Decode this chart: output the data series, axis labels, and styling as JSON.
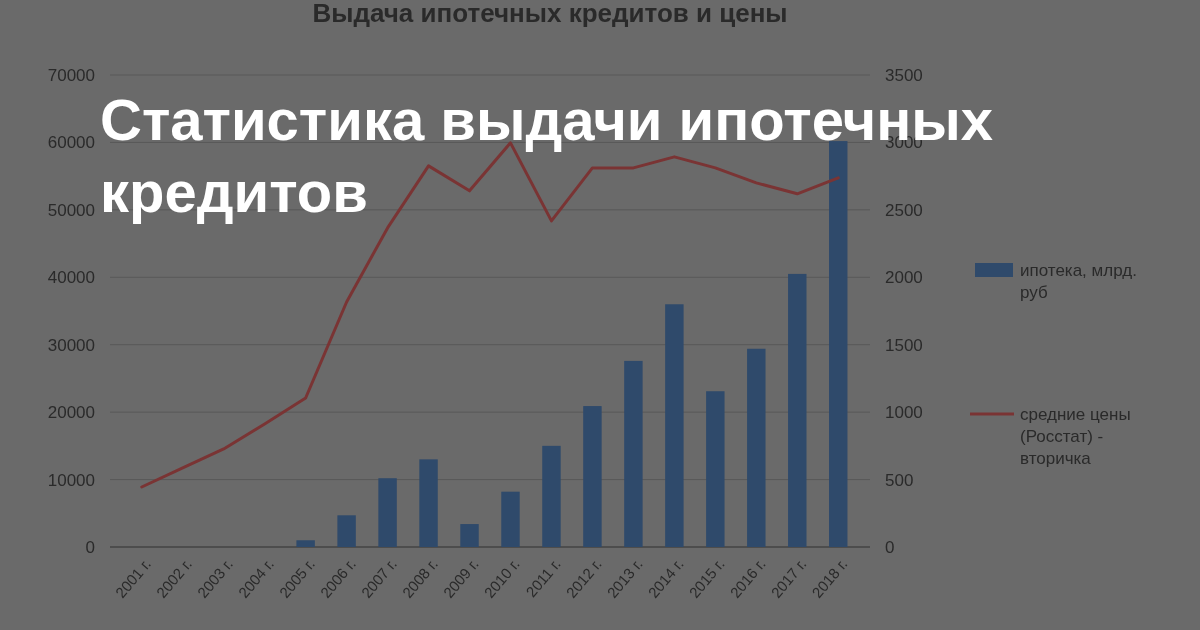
{
  "chart_data": {
    "type": "bar",
    "title": "Выдача ипотечных кредитов и цены",
    "annotations": [
      "Статистика выдачи ипотечных кредитов"
    ],
    "categories": [
      "2001 г.",
      "2002 г.",
      "2003 г.",
      "2004 г.",
      "2005 г.",
      "2006 г.",
      "2007 г.",
      "2008 г.",
      "2009 г.",
      "2010 г.",
      "2011 г.",
      "2012 г.",
      "2013 г.",
      "2014 г.",
      "2015 г.",
      "2016 г.",
      "2017 г.",
      "2018 г."
    ],
    "series": [
      {
        "name": "ипотека, млрд. руб",
        "color": "#2f4a6b",
        "values": [
          0,
          0,
          0,
          0,
          1000,
          4700,
          10200,
          13000,
          3400,
          8200,
          15000,
          20900,
          27600,
          36000,
          23100,
          29400,
          40500,
          60200
        ]
      },
      {
        "name": "средние цены (Росстат) - вторичка",
        "type": "line",
        "axis": "y2",
        "color": "#7a3434",
        "values": [
          445,
          586,
          727,
          912,
          1105,
          1817,
          2366,
          2826,
          2641,
          2997,
          2418,
          2811,
          2811,
          2893,
          2811,
          2700,
          2619,
          2737
        ]
      }
    ],
    "ylim": [
      0,
      70000
    ],
    "yticks": [
      0,
      10000,
      20000,
      30000,
      40000,
      50000,
      60000,
      70000
    ],
    "y2lim": [
      0,
      3500
    ],
    "y2ticks": [
      0,
      500,
      1000,
      1500,
      2000,
      2500,
      3000,
      3500
    ],
    "grid": "y",
    "legend": "right",
    "marker": "none",
    "line_style": "solid"
  }
}
